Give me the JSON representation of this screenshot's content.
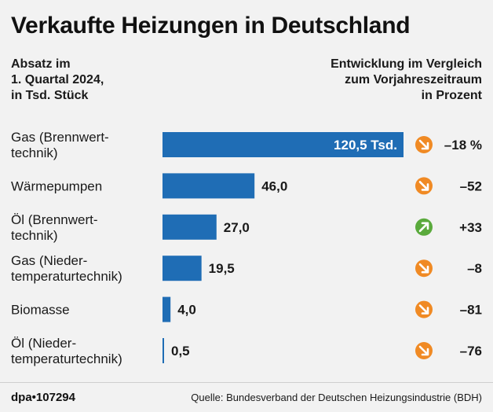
{
  "title": "Verkaufte Heizungen in Deutschland",
  "subtitle_left": "Absatz im\n1. Quartal 2024,\nin Tsd. Stück",
  "subtitle_right": "Entwicklung im Vergleich\nzum Vorjahreszeitraum\nin Prozent",
  "colors": {
    "bar": "#1f6db5",
    "down": "#f08a24",
    "up": "#5aaa3c"
  },
  "chart_data": {
    "type": "bar",
    "orientation": "horizontal",
    "title": "Verkaufte Heizungen in Deutschland",
    "unit": "Tsd. Stück",
    "categories": [
      [
        "Gas (Brennwert-",
        "technik)"
      ],
      [
        "Wärmepumpen"
      ],
      [
        "Öl (Brennwert-",
        "technik)"
      ],
      [
        "Gas (Nieder-",
        "temperaturtechnik)"
      ],
      [
        "Biomasse"
      ],
      [
        "Öl (Nieder-",
        "temperaturtechnik)"
      ]
    ],
    "values": [
      120.5,
      46.0,
      27.0,
      19.5,
      4.0,
      0.5
    ],
    "value_labels": [
      "120,5 Tsd.",
      "46,0",
      "27,0",
      "19,5",
      "4,0",
      "0,5"
    ],
    "change_percent": [
      -18,
      -52,
      33,
      -8,
      -81,
      -76
    ],
    "change_labels": [
      "–18 %",
      "–52",
      "+33",
      "–8",
      "–81",
      "–76"
    ],
    "xlim": [
      0,
      120.5
    ]
  },
  "footer": {
    "brand": "dpa•107294",
    "source": "Quelle: Bundesverband der Deutschen Heizungsindustrie (BDH)"
  }
}
